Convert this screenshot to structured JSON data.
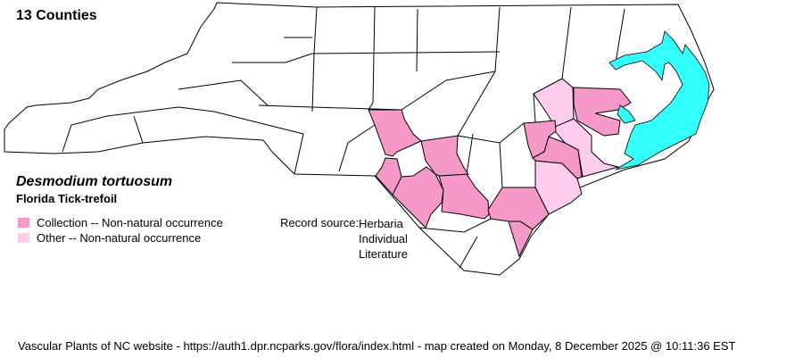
{
  "header": {
    "county_count": "13 Counties"
  },
  "species": {
    "scientific_name": "Desmodium tortuosum",
    "common_name": "Florida Tick-trefoil"
  },
  "legend": [
    {
      "label": "Collection -- Non-natural occurrence",
      "color": "#F799C8"
    },
    {
      "label": "Other -- Non-natural occurrence",
      "color": "#FFCCEE"
    }
  ],
  "record_source": {
    "label": "Record source:",
    "values": [
      "Herbaria",
      "Individual",
      "Literature"
    ]
  },
  "colors": {
    "water": "#33FFFF",
    "county_fill": "#FFFFFF",
    "border": "#000000"
  },
  "footer": "Vascular Plants of NC website - https://auth1.dpr.ncparks.gov/flora/index.html - map created on Monday, 8 December 2025 @ 10:11:36 EST"
}
